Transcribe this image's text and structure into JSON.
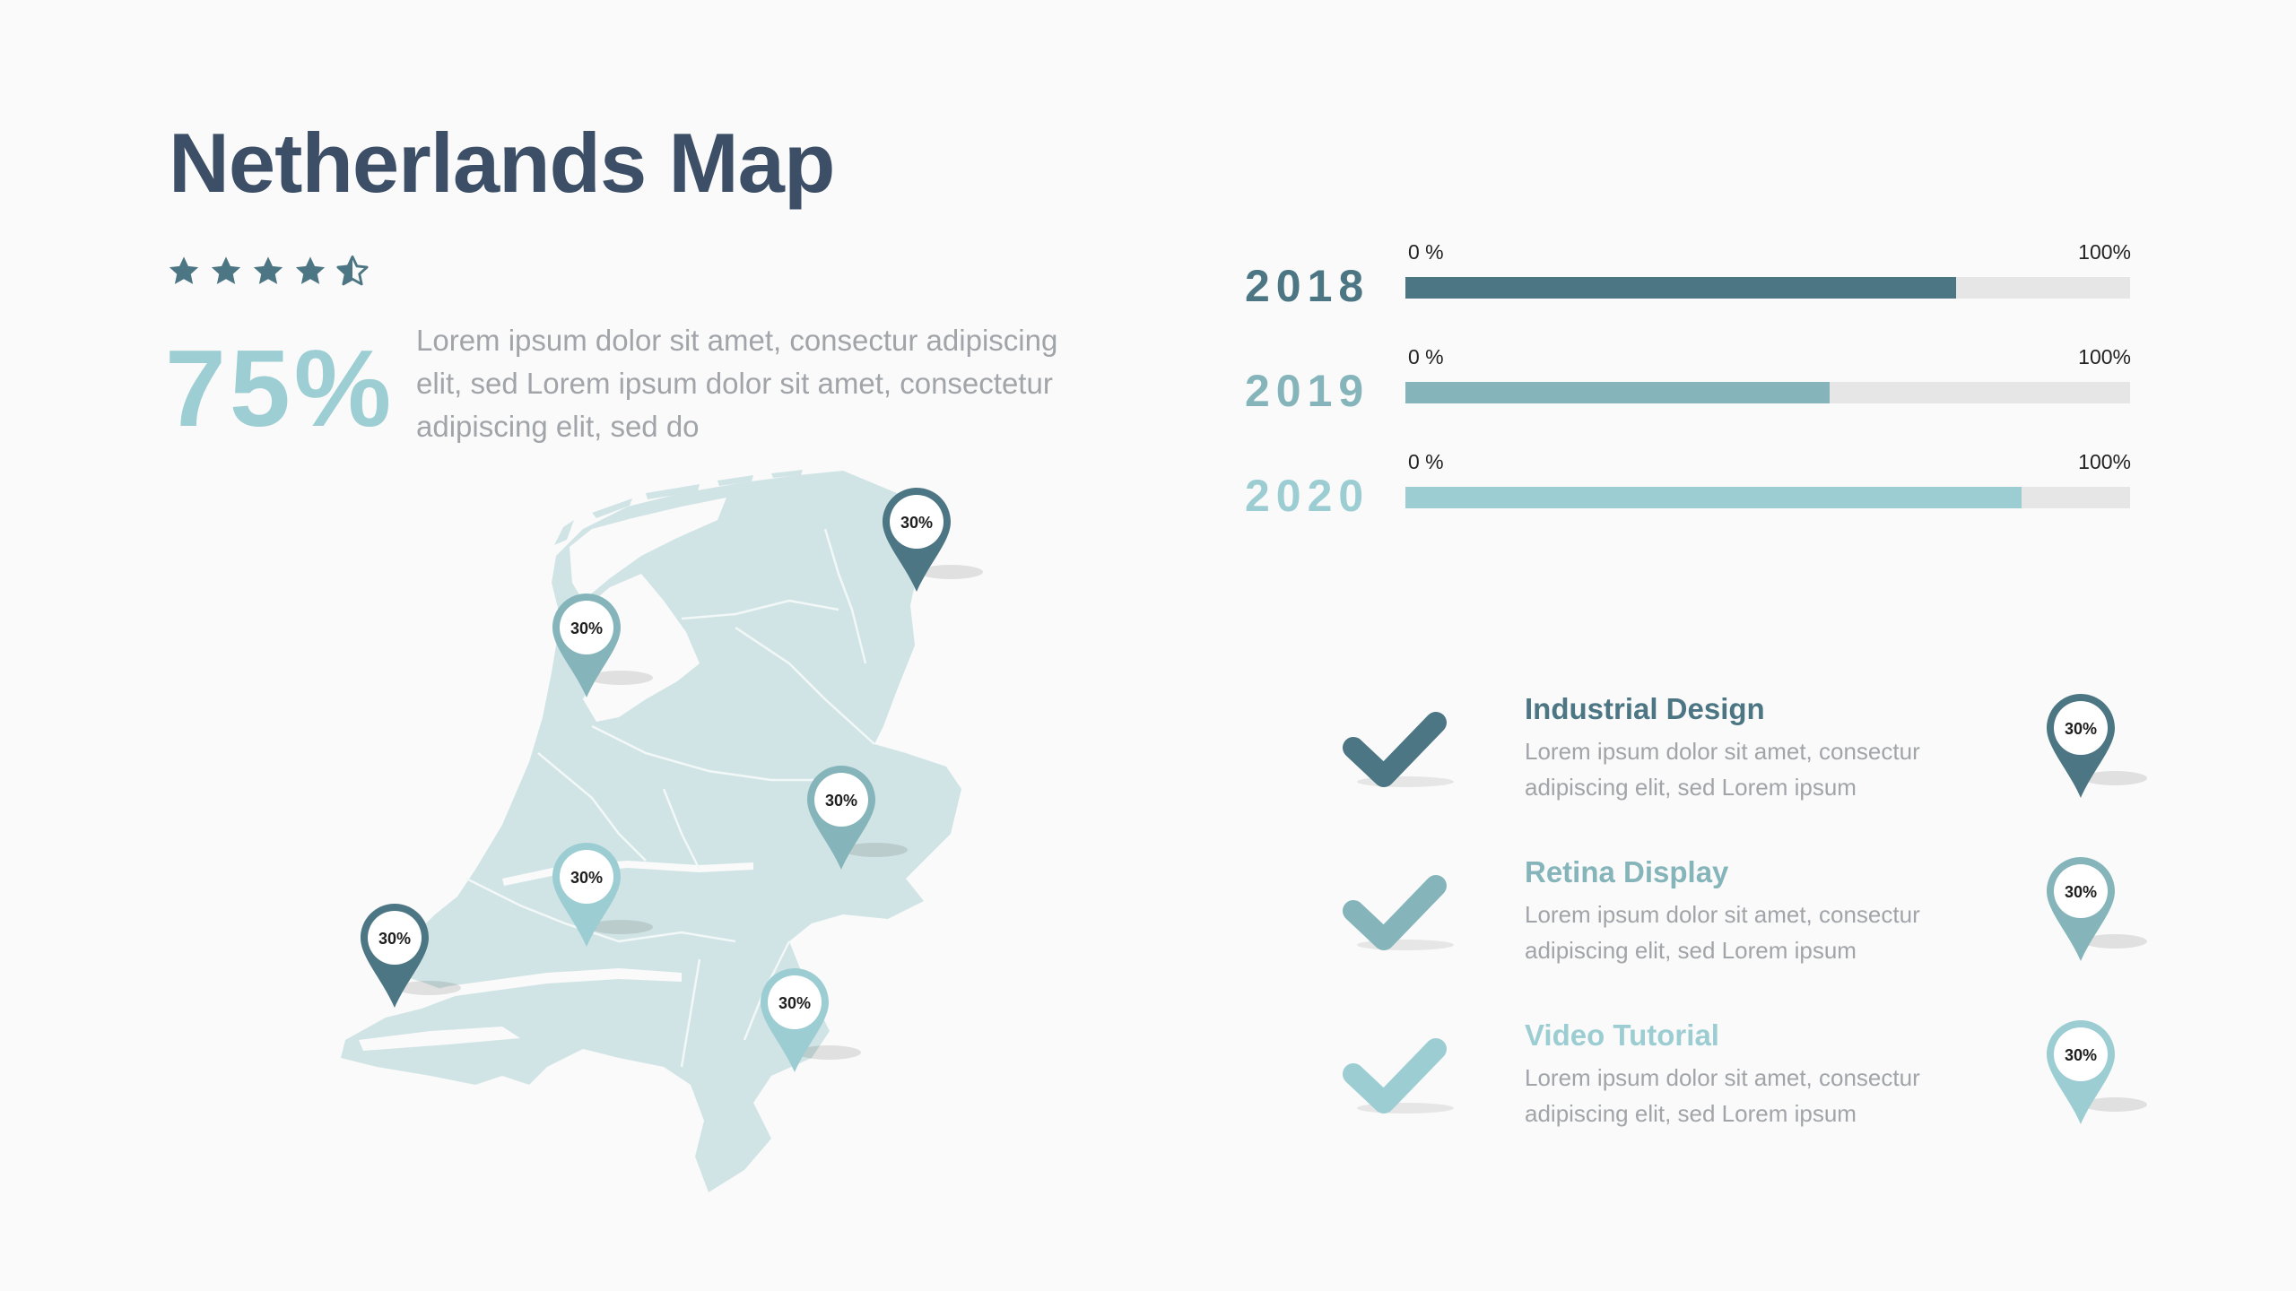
{
  "title": "Netherlands Map",
  "rating": {
    "value": 4.5,
    "max": 5,
    "icon": "star-icon"
  },
  "headline_stat": {
    "value": "75%",
    "description": "Lorem ipsum dolor sit amet, consectur adipiscing elit, sed Lorem ipsum dolor sit amet, consectetur adipiscing elit, sed do"
  },
  "colors": {
    "dark": "#4c7683",
    "mid": "#85b5ba",
    "light": "#9ccdd2",
    "title": "#3d4f66",
    "map": "#d1e4e5",
    "track": "#e6e6e6",
    "text_grey": "#a1a4a8"
  },
  "bars": [
    {
      "year": "2018",
      "min_label": "0 %",
      "max_label": "100%",
      "progress": 0.76,
      "color": "#4c7683"
    },
    {
      "year": "2019",
      "min_label": "0 %",
      "max_label": "100%",
      "progress": 0.585,
      "color": "#85b5ba"
    },
    {
      "year": "2020",
      "min_label": "0 %",
      "max_label": "100%",
      "progress": 0.85,
      "color": "#9ccdd2"
    }
  ],
  "map_pins": [
    {
      "label": "30%",
      "color": "#4c7683"
    },
    {
      "label": "30%",
      "color": "#85b5ba"
    },
    {
      "label": "30%",
      "color": "#85b5ba"
    },
    {
      "label": "30%",
      "color": "#9ccdd2"
    },
    {
      "label": "30%",
      "color": "#4c7683"
    },
    {
      "label": "30%",
      "color": "#9ccdd2"
    }
  ],
  "features": [
    {
      "title": "Industrial Design",
      "description": "Lorem ipsum dolor sit amet, consectur adipiscing elit, sed Lorem ipsum",
      "pin_label": "30%",
      "color": "#4c7683",
      "icon": "checkmark-icon"
    },
    {
      "title": "Retina Display",
      "description": "Lorem ipsum dolor sit amet, consectur adipiscing elit, sed Lorem ipsum",
      "pin_label": "30%",
      "color": "#85b5ba",
      "icon": "checkmark-icon"
    },
    {
      "title": "Video Tutorial",
      "description": "Lorem ipsum dolor sit amet, consectur adipiscing elit, sed Lorem ipsum",
      "pin_label": "30%",
      "color": "#9ccdd2",
      "icon": "checkmark-icon"
    }
  ]
}
